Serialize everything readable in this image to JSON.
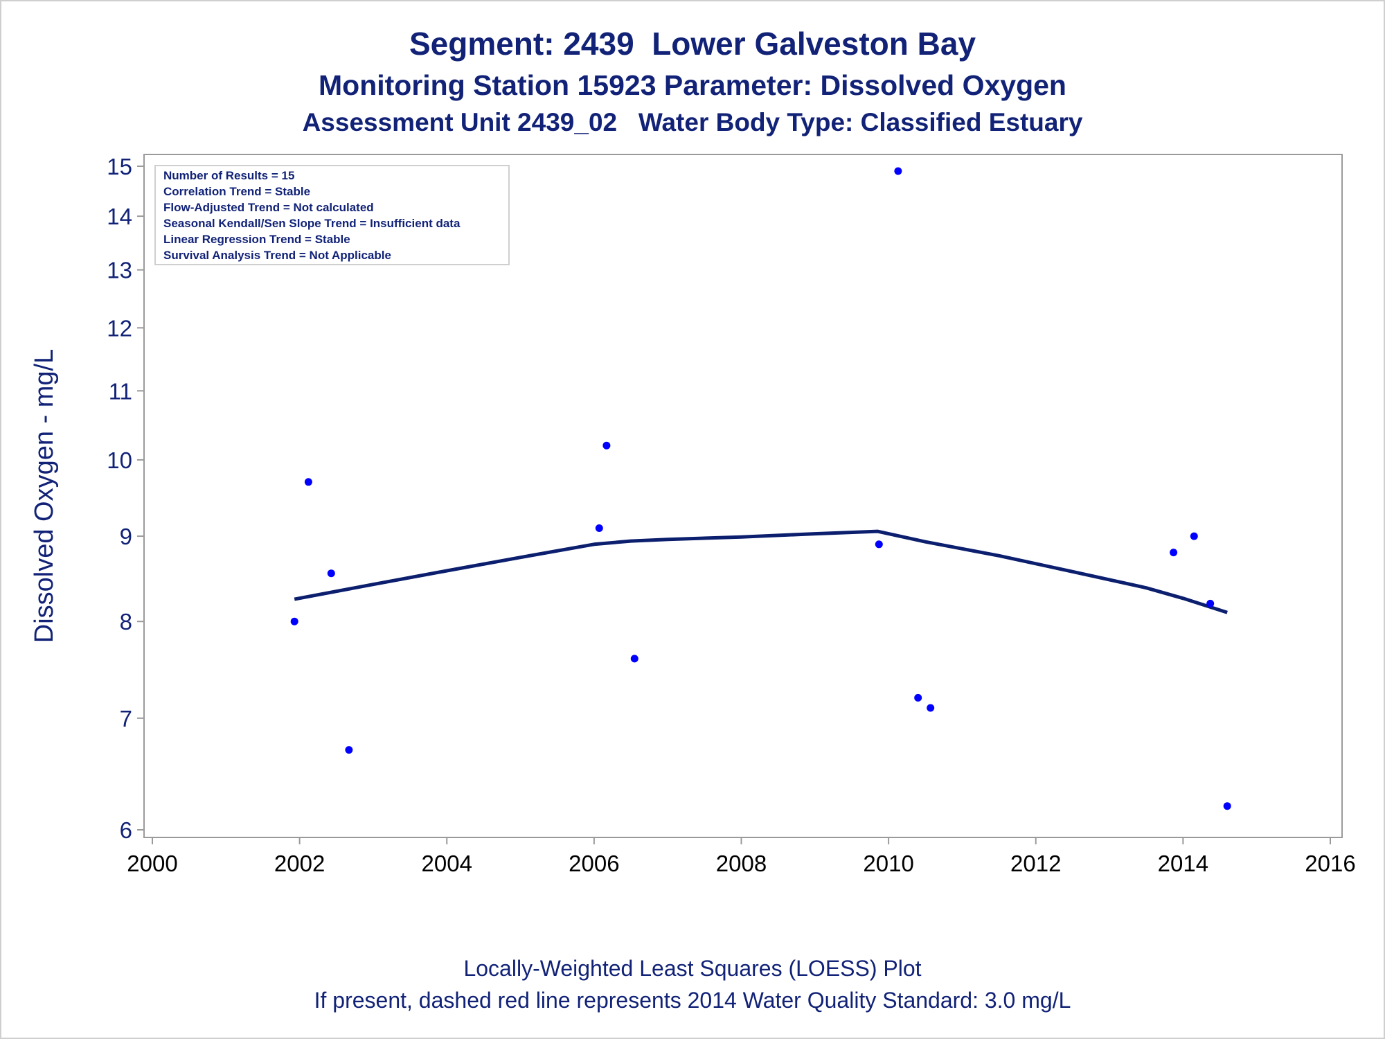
{
  "titles": {
    "line1": "Segment: 2439  Lower Galveston Bay",
    "line2": "Monitoring Station 15923 Parameter: Dissolved Oxygen",
    "line3": "Assessment Unit 2439_02   Water Body Type: Classified Estuary"
  },
  "footnotes": {
    "line1": "Locally-Weighted Least Squares (LOESS) Plot",
    "line2": "If present, dashed red line represents 2014 Water Quality Standard: 3.0 mg/L"
  },
  "info_box": [
    "Number of Results = 15",
    "Correlation Trend = Stable",
    "Flow-Adjusted Trend = Not calculated",
    "Seasonal Kendall/Sen Slope Trend = Insufficient data",
    "Linear Regression Trend = Stable",
    "Survival Analysis Trend = Not Applicable"
  ],
  "colors": {
    "text": "#112277",
    "points": "#0000ff",
    "loess": "#0b1f6e",
    "frame": "#9a9a9a"
  },
  "chart_data": {
    "type": "scatter",
    "ylabel": "Dissolved Oxygen - mg/L",
    "xlabel": "",
    "y_scale": "log",
    "xlim": [
      2000,
      2016
    ],
    "ylim": [
      5.85,
      15.2
    ],
    "x_ticks": [
      "2000",
      "2002",
      "2004",
      "2006",
      "2008",
      "2010",
      "2012",
      "2014",
      "2016"
    ],
    "y_ticks": [
      "6",
      "7",
      "8",
      "9",
      "10",
      "11",
      "12",
      "13",
      "14",
      "15"
    ],
    "grid": false,
    "series": [
      {
        "kind": "points",
        "x": [
          2001.93,
          2002.12,
          2002.43,
          2002.67,
          2006.07,
          2006.17,
          2006.55,
          2009.87,
          2010.13,
          2010.4,
          2010.57,
          2013.87,
          2014.15,
          2014.37,
          2014.6
        ],
        "y": [
          8.0,
          9.7,
          8.55,
          6.7,
          9.1,
          10.2,
          7.6,
          8.9,
          14.9,
          7.2,
          7.1,
          8.8,
          9.0,
          8.2,
          6.2
        ]
      },
      {
        "kind": "loess",
        "x": [
          2001.93,
          2003,
          2004,
          2005,
          2006,
          2006.5,
          2007,
          2008,
          2009,
          2009.85,
          2010.5,
          2011.5,
          2012.5,
          2013.5,
          2014,
          2014.6
        ],
        "y": [
          8.25,
          8.42,
          8.58,
          8.74,
          8.9,
          8.94,
          8.96,
          8.99,
          9.03,
          9.06,
          8.93,
          8.76,
          8.57,
          8.38,
          8.26,
          8.1
        ]
      }
    ]
  }
}
